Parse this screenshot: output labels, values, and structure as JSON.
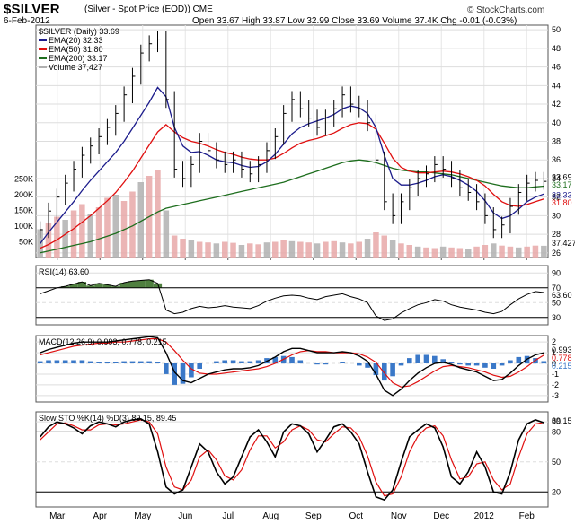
{
  "header": {
    "symbol": "$SILVER",
    "subtitle": "(Silver - Spot Price (EOD)) CME",
    "credit": "© StockCharts.com",
    "date": "6-Feb-2012",
    "ohlc": "Open 33.67  High 33.87  Low 32.99  Close 33.69  Volume 37.4K  Chg -0.01 (-0.03%)"
  },
  "colors": {
    "price": "#000000",
    "ema20": "#1c1c8c",
    "ema50": "#e01010",
    "ema200": "#1e6e1e",
    "volume": "#e8a8a8",
    "volume_alt": "#b0b0b0",
    "macd_hist": "#3a78c8",
    "rsi_fill": "#4f7f3f"
  },
  "chart_data": [
    {
      "type": "line",
      "name": "price",
      "legend": [
        "$SILVER (Daily) 33.69",
        "EMA(20) 32.33",
        "EMA(50) 31.80",
        "EMA(200) 33.17",
        "Volume 37,427"
      ],
      "x_labels": [
        "Mar",
        "Apr",
        "May",
        "Jun",
        "Jul",
        "Aug",
        "Sep",
        "Oct",
        "Nov",
        "Dec",
        "2012",
        "Feb"
      ],
      "y_ticks": [
        26,
        28,
        30,
        32,
        34,
        36,
        38,
        40,
        42,
        44,
        46,
        48,
        50
      ],
      "ylim": [
        25.5,
        50.5
      ],
      "volume_ticks": [
        "250K",
        "200K",
        "150K",
        "100K",
        "50K"
      ],
      "right_labels": [
        "33.69",
        "33.17",
        "32.33",
        "31.80",
        "37,427"
      ],
      "series": {
        "close": [
          28.5,
          30.5,
          32.0,
          33.5,
          35.0,
          36.5,
          37.5,
          38.5,
          39.5,
          41.0,
          43.0,
          45.0,
          47.5,
          48.5,
          49.0,
          42.5,
          35.0,
          34.0,
          35.5,
          38.0,
          37.0,
          36.0,
          35.5,
          36.0,
          35.0,
          34.5,
          35.5,
          37.0,
          38.5,
          41.0,
          42.5,
          41.5,
          40.5,
          39.5,
          40.5,
          41.5,
          43.0,
          42.0,
          41.5,
          40.0,
          36.0,
          31.5,
          30.0,
          31.5,
          33.0,
          34.0,
          34.5,
          35.5,
          35.0,
          34.0,
          33.0,
          32.5,
          31.5,
          30.0,
          28.5,
          29.0,
          31.0,
          32.5,
          33.5,
          33.8,
          33.69
        ],
        "ema20": [
          27.0,
          28.2,
          29.3,
          30.4,
          31.5,
          32.7,
          33.8,
          34.8,
          35.8,
          36.8,
          38.0,
          39.4,
          40.8,
          42.2,
          43.8,
          42.8,
          39.5,
          37.5,
          36.8,
          36.9,
          36.5,
          36.0,
          35.8,
          35.7,
          35.4,
          35.2,
          35.3,
          35.8,
          36.6,
          37.7,
          38.8,
          39.5,
          39.9,
          40.2,
          40.5,
          40.9,
          41.5,
          41.8,
          41.6,
          41.0,
          39.5,
          36.5,
          34.0,
          33.3,
          33.3,
          33.5,
          33.8,
          34.2,
          34.4,
          34.2,
          33.8,
          33.3,
          32.6,
          31.6,
          30.3,
          29.7,
          30.0,
          30.7,
          31.5,
          32.0,
          32.33
        ],
        "ema50": [
          26.5,
          26.9,
          27.4,
          28.0,
          28.6,
          29.3,
          30.0,
          30.8,
          31.6,
          32.5,
          33.6,
          34.8,
          36.2,
          37.6,
          39.0,
          39.8,
          39.0,
          38.4,
          38.0,
          37.8,
          37.5,
          37.1,
          36.8,
          36.6,
          36.3,
          36.1,
          36.0,
          36.0,
          36.2,
          36.7,
          37.3,
          37.8,
          38.1,
          38.3,
          38.6,
          38.9,
          39.4,
          39.8,
          40.0,
          39.9,
          39.3,
          37.8,
          36.2,
          35.2,
          34.8,
          34.6,
          34.6,
          34.7,
          34.8,
          34.7,
          34.5,
          34.2,
          33.8,
          33.2,
          32.3,
          31.5,
          31.1,
          31.0,
          31.2,
          31.5,
          31.8
        ],
        "ema200": [
          26.0,
          26.2,
          26.4,
          26.6,
          26.8,
          27.0,
          27.2,
          27.5,
          27.8,
          28.1,
          28.5,
          28.9,
          29.4,
          29.9,
          30.4,
          30.8,
          31.0,
          31.2,
          31.4,
          31.6,
          31.8,
          32.0,
          32.2,
          32.4,
          32.6,
          32.8,
          33.0,
          33.2,
          33.4,
          33.6,
          33.9,
          34.2,
          34.5,
          34.8,
          35.1,
          35.4,
          35.7,
          35.9,
          36.0,
          35.9,
          35.7,
          35.4,
          35.1,
          34.9,
          34.8,
          34.7,
          34.7,
          34.6,
          34.5,
          34.4,
          34.2,
          34.0,
          33.8,
          33.6,
          33.4,
          33.2,
          33.1,
          33.0,
          33.0,
          33.1,
          33.17
        ],
        "volume": [
          90,
          110,
          130,
          120,
          150,
          170,
          140,
          160,
          190,
          200,
          180,
          210,
          240,
          260,
          280,
          150,
          70,
          60,
          55,
          50,
          48,
          45,
          50,
          47,
          40,
          45,
          42,
          48,
          50,
          55,
          52,
          50,
          48,
          45,
          50,
          52,
          48,
          45,
          50,
          60,
          80,
          70,
          55,
          45,
          40,
          35,
          32,
          30,
          35,
          32,
          30,
          28,
          35,
          40,
          45,
          38,
          35,
          32,
          35,
          38,
          37.4
        ]
      }
    },
    {
      "type": "line",
      "name": "rsi",
      "legend": "RSI(14) 63.60",
      "y_ticks": [
        30,
        50,
        70,
        90
      ],
      "ylim": [
        20,
        100
      ],
      "right_label": "63.60",
      "values": [
        62,
        66,
        70,
        72,
        75,
        78,
        73,
        76,
        74,
        72,
        77,
        79,
        80,
        81,
        76,
        40,
        35,
        37,
        42,
        45,
        43,
        44,
        46,
        44,
        43,
        42,
        46,
        52,
        56,
        59,
        60,
        59,
        56,
        54,
        58,
        60,
        62,
        58,
        55,
        50,
        32,
        26,
        28,
        36,
        42,
        47,
        50,
        54,
        52,
        47,
        44,
        42,
        40,
        37,
        35,
        38,
        47,
        55,
        61,
        65,
        63.6
      ]
    },
    {
      "type": "line",
      "name": "macd",
      "legend": "MACD(12,26,9) 0.993, 0.778, 0.215",
      "y_ticks": [
        -3,
        -2,
        -1,
        0,
        1,
        2
      ],
      "ylim": [
        -3.6,
        2.6
      ],
      "right_labels": [
        "0.993",
        "0.778",
        "0.215"
      ],
      "macd": [
        1.0,
        1.3,
        1.5,
        1.7,
        1.9,
        2.0,
        2.0,
        2.0,
        2.0,
        2.1,
        2.2,
        2.3,
        2.4,
        2.5,
        2.4,
        1.0,
        -0.8,
        -1.6,
        -1.8,
        -1.4,
        -1.0,
        -0.8,
        -0.6,
        -0.5,
        -0.5,
        -0.4,
        -0.2,
        0.2,
        0.6,
        1.1,
        1.4,
        1.4,
        1.2,
        1.0,
        1.0,
        1.0,
        1.1,
        1.0,
        0.7,
        0.2,
        -1.0,
        -2.5,
        -3.0,
        -2.4,
        -1.6,
        -0.9,
        -0.4,
        0.0,
        0.1,
        -0.1,
        -0.4,
        -0.6,
        -0.8,
        -1.2,
        -1.6,
        -1.5,
        -0.9,
        -0.2,
        0.4,
        0.8,
        0.993
      ],
      "signal": [
        0.8,
        1.0,
        1.2,
        1.4,
        1.6,
        1.7,
        1.8,
        1.9,
        1.9,
        2.0,
        2.0,
        2.1,
        2.2,
        2.3,
        2.3,
        2.0,
        1.2,
        0.3,
        -0.5,
        -0.9,
        -1.0,
        -1.0,
        -0.9,
        -0.8,
        -0.7,
        -0.6,
        -0.5,
        -0.3,
        0.0,
        0.4,
        0.8,
        1.1,
        1.2,
        1.1,
        1.1,
        1.0,
        1.0,
        1.0,
        0.9,
        0.6,
        0.1,
        -0.9,
        -1.8,
        -2.2,
        -2.1,
        -1.7,
        -1.2,
        -0.7,
        -0.3,
        -0.2,
        -0.3,
        -0.4,
        -0.6,
        -0.8,
        -1.1,
        -1.3,
        -1.2,
        -0.8,
        -0.3,
        0.3,
        0.778
      ]
    },
    {
      "type": "line",
      "name": "stochastic",
      "legend": "Slow STO %K(14) %D(3) 89.15, 89.45",
      "y_ticks": [
        20,
        50,
        80,
        90
      ],
      "ylim": [
        5,
        100
      ],
      "right_label": "89.15",
      "k": [
        75,
        85,
        90,
        88,
        84,
        78,
        86,
        90,
        88,
        85,
        90,
        92,
        93,
        88,
        60,
        25,
        18,
        22,
        45,
        68,
        60,
        40,
        28,
        35,
        55,
        75,
        82,
        70,
        55,
        80,
        88,
        86,
        78,
        60,
        72,
        85,
        88,
        80,
        68,
        40,
        15,
        12,
        22,
        50,
        75,
        82,
        88,
        84,
        65,
        35,
        28,
        40,
        60,
        45,
        20,
        18,
        40,
        72,
        88,
        92,
        89.15
      ],
      "d": [
        72,
        80,
        88,
        89,
        86,
        82,
        82,
        87,
        88,
        87,
        88,
        90,
        92,
        90,
        78,
        45,
        25,
        22,
        32,
        55,
        62,
        52,
        36,
        32,
        42,
        62,
        76,
        76,
        64,
        70,
        82,
        86,
        82,
        72,
        70,
        78,
        85,
        84,
        75,
        56,
        30,
        16,
        18,
        35,
        60,
        76,
        84,
        86,
        76,
        52,
        33,
        35,
        48,
        50,
        32,
        22,
        28,
        55,
        78,
        88,
        89.45
      ]
    }
  ]
}
